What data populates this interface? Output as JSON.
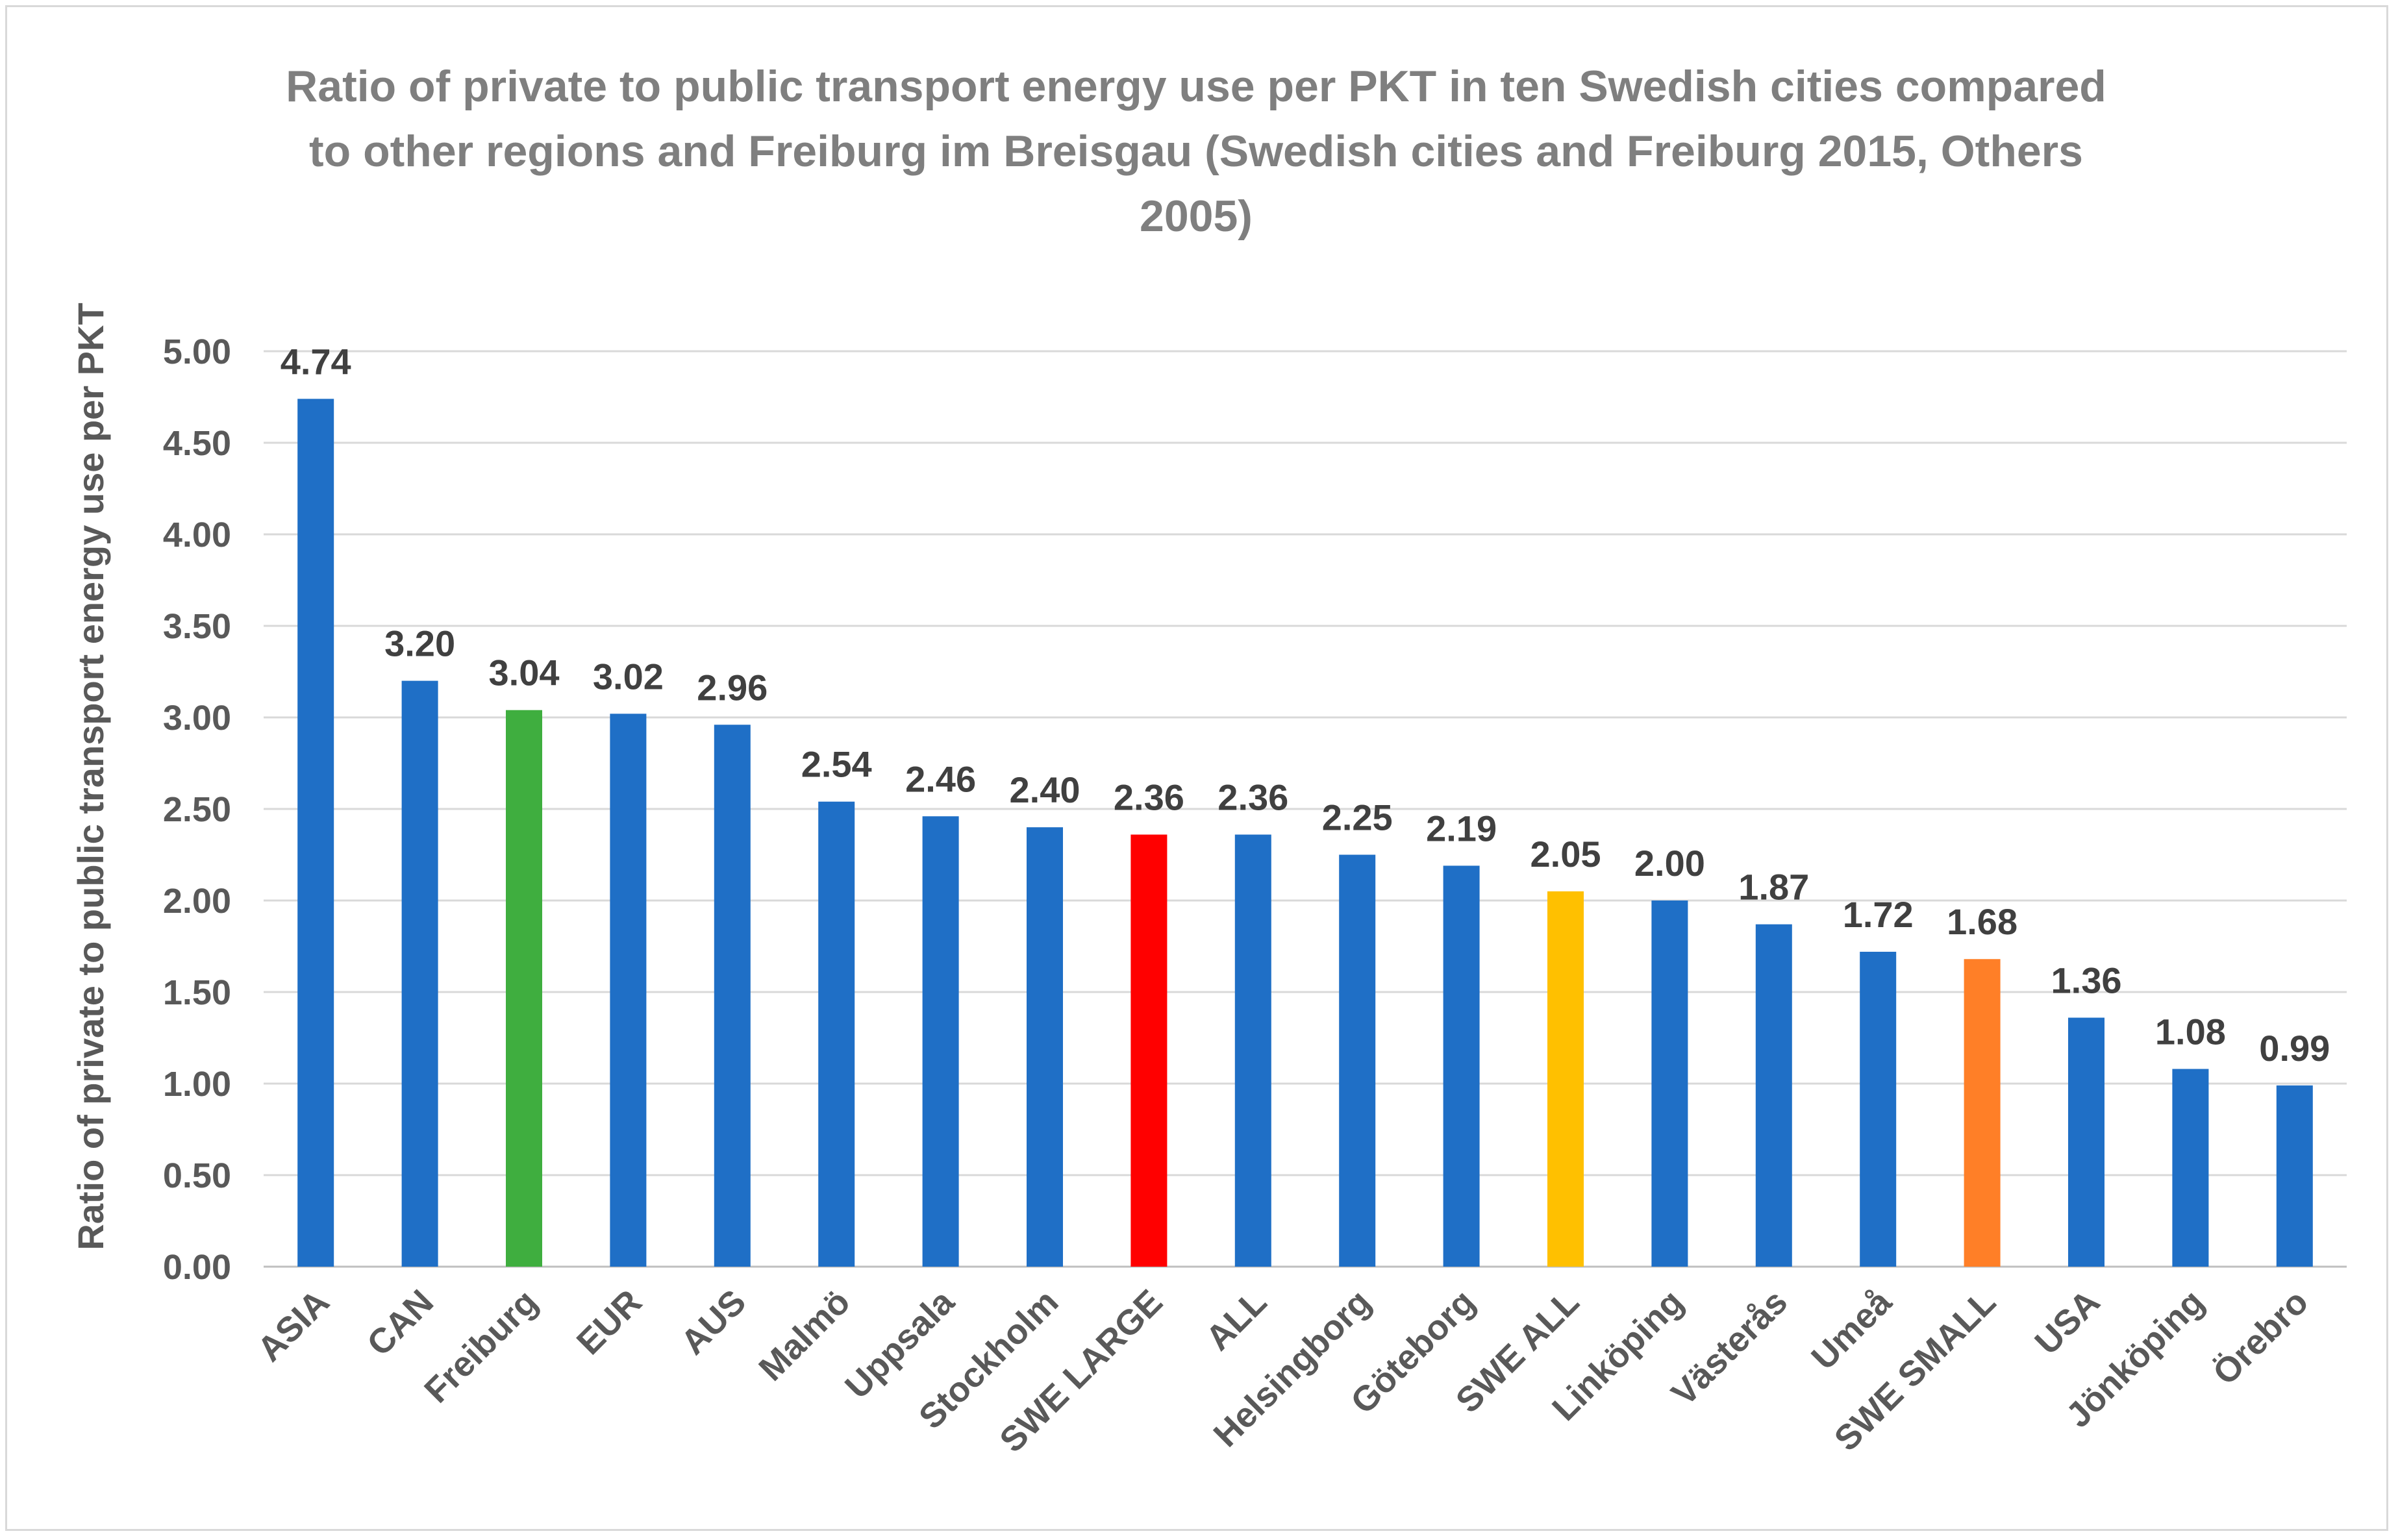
{
  "chart_data": {
    "type": "bar",
    "title_lines": [
      "Ratio of private to public transport energy use per PKT in ten Swedish cities compared",
      "to other regions and Freiburg im Breisgau (Swedish cities and Freiburg 2015, Others",
      "2005)"
    ],
    "ylabel": "Ratio of private to public transport energy use per PKT",
    "xlabel": "",
    "ylim": [
      0,
      5
    ],
    "yticks": [
      "0.00",
      "0.50",
      "1.00",
      "1.50",
      "2.00",
      "2.50",
      "3.00",
      "3.50",
      "4.00",
      "4.50",
      "5.00"
    ],
    "ytick_values": [
      0,
      0.5,
      1,
      1.5,
      2,
      2.5,
      3,
      3.5,
      4,
      4.5,
      5
    ],
    "grid": true,
    "legend": "none",
    "categories": [
      "ASIA",
      "CAN",
      "Freiburg",
      "EUR",
      "AUS",
      "Malmö",
      "Uppsala",
      "Stockholm",
      "SWE LARGE",
      "ALL",
      "Helsingborg",
      "Göteborg",
      "SWE ALL",
      "Linköping",
      "Västerås",
      "Umeå",
      "SWE SMALL",
      "USA",
      "Jönköping",
      "Örebro"
    ],
    "values": [
      4.74,
      3.2,
      3.04,
      3.02,
      2.96,
      2.54,
      2.46,
      2.4,
      2.36,
      2.36,
      2.25,
      2.19,
      2.05,
      2.0,
      1.87,
      1.72,
      1.68,
      1.36,
      1.08,
      0.99
    ],
    "value_labels": [
      "4.74",
      "3.20",
      "3.04",
      "3.02",
      "2.96",
      "2.54",
      "2.46",
      "2.40",
      "2.36",
      "2.36",
      "2.25",
      "2.19",
      "2.05",
      "2.00",
      "1.87",
      "1.72",
      "1.68",
      "1.36",
      "1.08",
      "0.99"
    ],
    "colors": [
      "#1f6fc6",
      "#1f6fc6",
      "#3fae3f",
      "#1f6fc6",
      "#1f6fc6",
      "#1f6fc6",
      "#1f6fc6",
      "#1f6fc6",
      "#ff0000",
      "#1f6fc6",
      "#1f6fc6",
      "#1f6fc6",
      "#ffc000",
      "#1f6fc6",
      "#1f6fc6",
      "#1f6fc6",
      "#ff7f27",
      "#1f6fc6",
      "#1f6fc6",
      "#1f6fc6"
    ]
  }
}
